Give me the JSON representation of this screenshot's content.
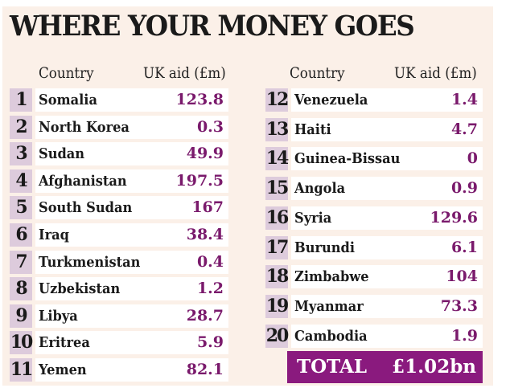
{
  "title": "WHERE YOUR MONEY GOES",
  "headers": {
    "country": "Country",
    "aid": "UK aid (£m)"
  },
  "left": [
    {
      "rank": "1",
      "country": "Somalia",
      "aid": "123.8"
    },
    {
      "rank": "2",
      "country": "North Korea",
      "aid": "0.3"
    },
    {
      "rank": "3",
      "country": "Sudan",
      "aid": "49.9"
    },
    {
      "rank": "4",
      "country": "Afghanistan",
      "aid": "197.5"
    },
    {
      "rank": "5",
      "country": "South Sudan",
      "aid": "167"
    },
    {
      "rank": "6",
      "country": "Iraq",
      "aid": "38.4"
    },
    {
      "rank": "7",
      "country": "Turkmenistan",
      "aid": "0.4"
    },
    {
      "rank": "8",
      "country": "Uzbekistan",
      "aid": "1.2"
    },
    {
      "rank": "9",
      "country": "Libya",
      "aid": "28.7"
    },
    {
      "rank": "10",
      "country": "Eritrea",
      "aid": "5.9"
    },
    {
      "rank": "11",
      "country": "Yemen",
      "aid": "82.1"
    }
  ],
  "right": [
    {
      "rank": "12",
      "country": "Venezuela",
      "aid": "1.4"
    },
    {
      "rank": "13",
      "country": "Haiti",
      "aid": "4.7"
    },
    {
      "rank": "14",
      "country": "Guinea-Bissau",
      "aid": "0"
    },
    {
      "rank": "15",
      "country": "Angola",
      "aid": "0.9"
    },
    {
      "rank": "16",
      "country": "Syria",
      "aid": "129.6"
    },
    {
      "rank": "17",
      "country": "Burundi",
      "aid": "6.1"
    },
    {
      "rank": "18",
      "country": "Zimbabwe",
      "aid": "104"
    },
    {
      "rank": "19",
      "country": "Myanmar",
      "aid": "73.3"
    },
    {
      "rank": "20",
      "country": "Cambodia",
      "aid": "1.9"
    }
  ],
  "total": {
    "label": "TOTAL",
    "value": "£1.02bn"
  }
}
